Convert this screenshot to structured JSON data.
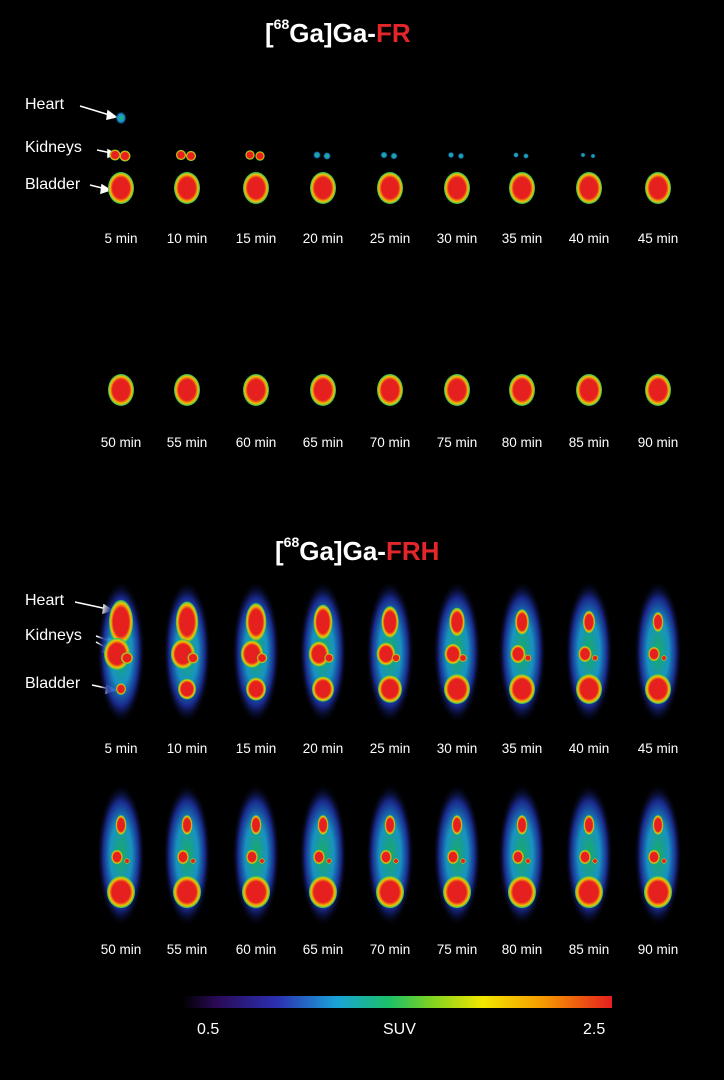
{
  "panel1": {
    "title_prefix": "[",
    "title_sup": "68",
    "title_mid": "Ga]Ga-",
    "title_highlight": "FR",
    "labels": {
      "heart": "Heart",
      "kidneys": "Kidneys",
      "bladder": "Bladder"
    },
    "row1_times": [
      "5 min",
      "10 min",
      "15 min",
      "20 min",
      "25 min",
      "30 min",
      "35 min",
      "40 min",
      "45 min"
    ],
    "row2_times": [
      "50 min",
      "55 min",
      "60 min",
      "65 min",
      "70 min",
      "75 min",
      "80 min",
      "85 min",
      "90 min"
    ]
  },
  "panel2": {
    "title_prefix": "[",
    "title_sup": "68",
    "title_mid": "Ga]Ga-",
    "title_highlight": "FRH",
    "labels": {
      "heart": "Heart",
      "kidneys": "Kidneys",
      "bladder": "Bladder"
    },
    "row1_times": [
      "5 min",
      "10 min",
      "15 min",
      "20 min",
      "25 min",
      "30 min",
      "35 min",
      "40 min",
      "45 min"
    ],
    "row2_times": [
      "50 min",
      "55 min",
      "60 min",
      "65 min",
      "70 min",
      "75 min",
      "80 min",
      "85 min",
      "90 min"
    ]
  },
  "colorbar": {
    "min": "0.5",
    "label": "SUV",
    "max": "2.5"
  },
  "colors": {
    "highlight": "#e4262b",
    "hot": "#e6201f",
    "rim": "#1bbf6a"
  }
}
